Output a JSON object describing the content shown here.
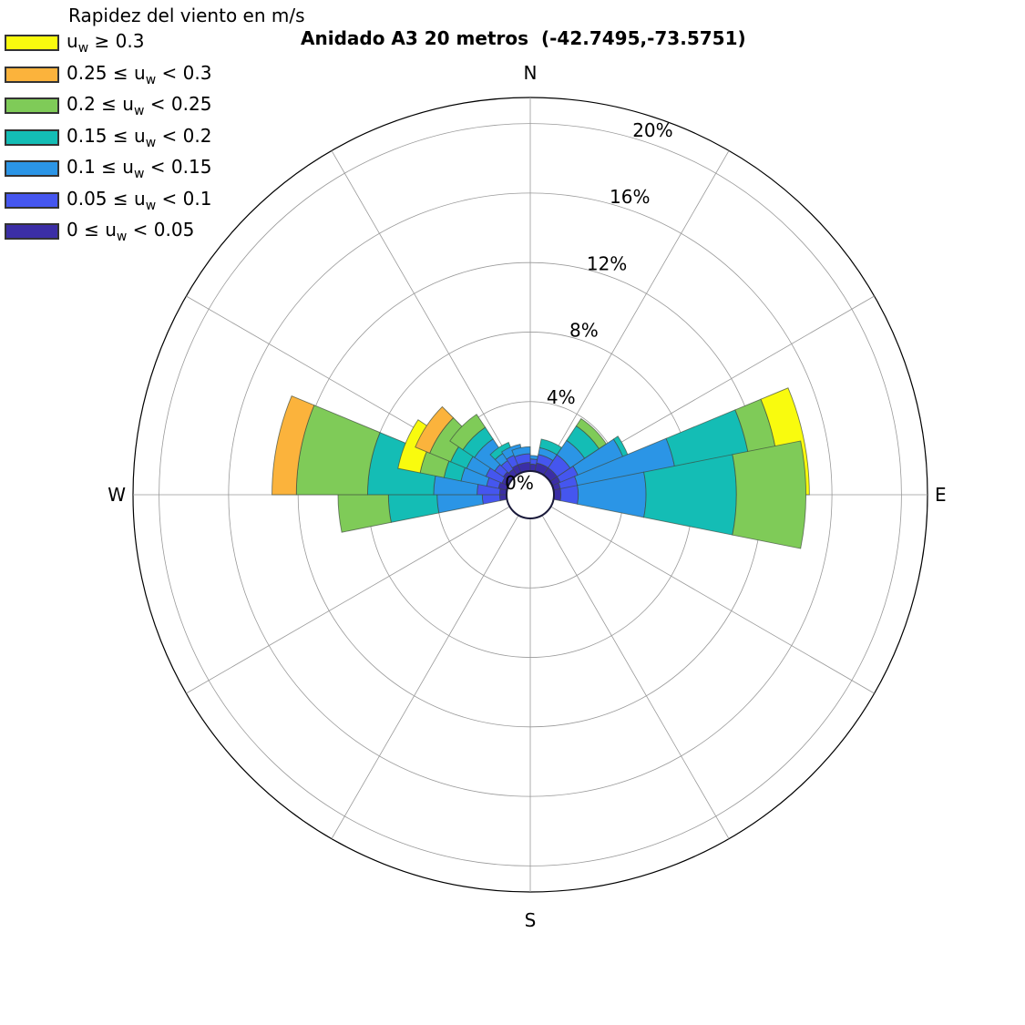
{
  "chart_data": {
    "type": "windrose",
    "title": "Anidado A3 20 metros  (-42.7495,-73.5751)",
    "legend_title": "Rapidez del viento en m/s",
    "legend_placement": "top-left",
    "direction_labels": {
      "n": "N",
      "e": "E",
      "s": "S",
      "w": "W"
    },
    "radial_unit": "%",
    "rmax": 21.5,
    "rings": [
      4,
      8,
      12,
      16,
      20
    ],
    "ring_labels": [
      "4%",
      "8%",
      "12%",
      "16%",
      "20%"
    ],
    "zero_label": "0%",
    "sector_width_deg": 22.5,
    "bins": [
      {
        "label_pre": "0 ≤ u",
        "label_post": " < 0.05",
        "color": "#3b2ea6"
      },
      {
        "label_pre": "0.05 ≤ u",
        "label_post": " < 0.1",
        "color": "#4556ef"
      },
      {
        "label_pre": "0.1 ≤ u",
        "label_post": " < 0.15",
        "color": "#2b95e6"
      },
      {
        "label_pre": "0.15 ≤ u",
        "label_post": " < 0.2",
        "color": "#14bdb5"
      },
      {
        "label_pre": "0.2 ≤ u",
        "label_post": " < 0.25",
        "color": "#7fcb58"
      },
      {
        "label_pre": "0.25 ≤ u",
        "label_post": " < 0.3",
        "color": "#fbb33c"
      },
      {
        "label_pre": "u",
        "label_post": " ≥ 0.3",
        "color": "#f9fb0e"
      }
    ],
    "legend_subscript": "w",
    "sectors": [
      {
        "dir": 0,
        "values": [
          0.4,
          0.3,
          0.2,
          0,
          0,
          0,
          0
        ]
      },
      {
        "dir": 22.5,
        "values": [
          0.5,
          0.5,
          0.4,
          0.5,
          0,
          0,
          0
        ]
      },
      {
        "dir": 45,
        "values": [
          0.5,
          0.9,
          1.0,
          1.0,
          0.5,
          0,
          0
        ]
      },
      {
        "dir": 67.5,
        "values": [
          0.5,
          1.1,
          2.8,
          0.3,
          0,
          0,
          0
        ]
      },
      {
        "dir": 78.75,
        "values": [
          0.4,
          1.0,
          5.7,
          4.3,
          1.6,
          0,
          1.7
        ]
      },
      {
        "dir": 90,
        "values": [
          0.4,
          1.0,
          3.9,
          5.2,
          4.0,
          0,
          0
        ]
      },
      {
        "dir": 270,
        "values": [
          0.4,
          1.0,
          2.6,
          2.8,
          2.9,
          0,
          0
        ]
      },
      {
        "dir": 281.25,
        "values": [
          0.4,
          1.3,
          2.5,
          3.8,
          4.1,
          1.4,
          0
        ]
      },
      {
        "dir": 292.5,
        "values": [
          0.5,
          0.7,
          1.5,
          1.0,
          1.4,
          0,
          1.3
        ]
      },
      {
        "dir": 303.75,
        "values": [
          0.4,
          1.0,
          1.2,
          1.0,
          1.3,
          0.9,
          0
        ]
      },
      {
        "dir": 315,
        "values": [
          0.5,
          0.6,
          1.4,
          0.8,
          0.9,
          0,
          0
        ]
      },
      {
        "dir": 326.25,
        "values": [
          0.4,
          0.6,
          0.5,
          0.4,
          0,
          0,
          0
        ]
      },
      {
        "dir": 337.5,
        "values": [
          0.5,
          0.6,
          0.5,
          0,
          0,
          0,
          0
        ]
      },
      {
        "dir": 348.75,
        "values": [
          0.5,
          0.5,
          0.4,
          0,
          0,
          0,
          0
        ]
      }
    ]
  }
}
